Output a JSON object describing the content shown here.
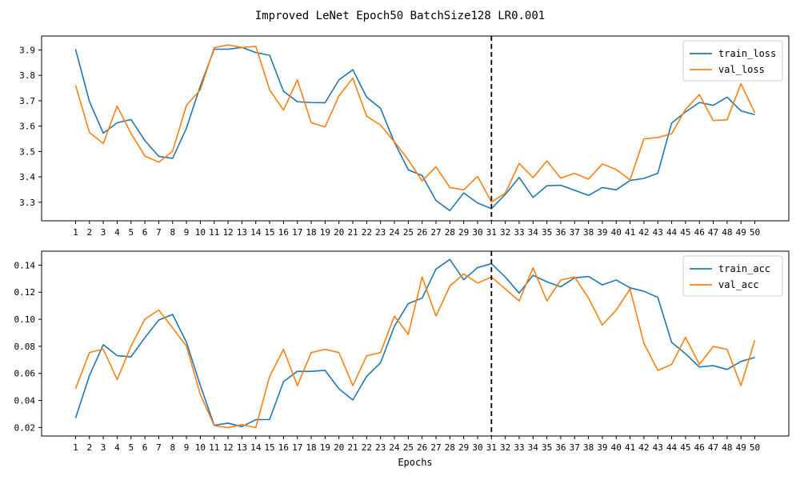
{
  "figure": {
    "title": "Improved LeNet Epoch50 BatchSize128 LR0.001",
    "xlabel": "Epochs"
  },
  "chart_data": [
    {
      "type": "line",
      "title": "",
      "xlabel": "",
      "ylabel": "",
      "x": [
        1,
        2,
        3,
        4,
        5,
        6,
        7,
        8,
        9,
        10,
        11,
        12,
        13,
        14,
        15,
        16,
        17,
        18,
        19,
        20,
        21,
        22,
        23,
        24,
        25,
        26,
        27,
        28,
        29,
        30,
        31,
        32,
        33,
        34,
        35,
        36,
        37,
        38,
        39,
        40,
        41,
        42,
        43,
        44,
        45,
        46,
        47,
        48,
        49,
        50
      ],
      "xlim": [
        -1.45,
        52.45
      ],
      "ylim": [
        3.227,
        3.955
      ],
      "yticks": [
        3.3,
        3.4,
        3.5,
        3.6,
        3.7,
        3.8,
        3.9
      ],
      "ytick_labels": [
        "3.3",
        "3.4",
        "3.5",
        "3.6",
        "3.7",
        "3.8",
        "3.9"
      ],
      "grid": false,
      "legend_position": "upper-right",
      "vline": {
        "x": 31,
        "style": "dashed",
        "color": "#000000"
      },
      "series": [
        {
          "name": "train_loss",
          "color": "#1f77b4",
          "values": [
            3.903,
            3.697,
            3.572,
            3.613,
            3.626,
            3.543,
            3.481,
            3.473,
            3.592,
            3.758,
            3.903,
            3.903,
            3.91,
            3.89,
            3.879,
            3.737,
            3.696,
            3.693,
            3.692,
            3.782,
            3.822,
            3.714,
            3.67,
            3.536,
            3.428,
            3.405,
            3.307,
            3.267,
            3.337,
            3.297,
            3.275,
            3.331,
            3.398,
            3.319,
            3.365,
            3.367,
            3.347,
            3.327,
            3.358,
            3.349,
            3.386,
            3.394,
            3.414,
            3.612,
            3.656,
            3.693,
            3.682,
            3.714,
            3.66,
            3.645
          ]
        },
        {
          "name": "val_loss",
          "color": "#ff7f0e",
          "values": [
            3.761,
            3.575,
            3.532,
            3.679,
            3.571,
            3.482,
            3.458,
            3.501,
            3.682,
            3.743,
            3.909,
            3.92,
            3.91,
            3.914,
            3.743,
            3.663,
            3.782,
            3.613,
            3.597,
            3.719,
            3.789,
            3.639,
            3.604,
            3.538,
            3.467,
            3.384,
            3.44,
            3.358,
            3.349,
            3.402,
            3.301,
            3.336,
            3.453,
            3.397,
            3.463,
            3.395,
            3.414,
            3.391,
            3.451,
            3.429,
            3.388,
            3.55,
            3.555,
            3.57,
            3.666,
            3.724,
            3.622,
            3.625,
            3.767,
            3.652
          ]
        }
      ]
    },
    {
      "type": "line",
      "title": "",
      "xlabel": "Epochs",
      "ylabel": "",
      "x": [
        1,
        2,
        3,
        4,
        5,
        6,
        7,
        8,
        9,
        10,
        11,
        12,
        13,
        14,
        15,
        16,
        17,
        18,
        19,
        20,
        21,
        22,
        23,
        24,
        25,
        26,
        27,
        28,
        29,
        30,
        31,
        32,
        33,
        34,
        35,
        36,
        37,
        38,
        39,
        40,
        41,
        42,
        43,
        44,
        45,
        46,
        47,
        48,
        49,
        50
      ],
      "xlim": [
        -1.45,
        52.45
      ],
      "ylim": [
        0.0137,
        0.1503
      ],
      "yticks": [
        0.02,
        0.04,
        0.06,
        0.08,
        0.1,
        0.12,
        0.14
      ],
      "ytick_labels": [
        "0.02",
        "0.04",
        "0.06",
        "0.08",
        "0.10",
        "0.12",
        "0.14"
      ],
      "grid": false,
      "legend_position": "upper-right",
      "vline": {
        "x": 31,
        "style": "dashed",
        "color": "#000000"
      },
      "series": [
        {
          "name": "train_acc",
          "color": "#1f77b4",
          "values": [
            0.0269,
            0.0583,
            0.0812,
            0.0731,
            0.0722,
            0.0864,
            0.0994,
            0.1036,
            0.0829,
            0.0511,
            0.0216,
            0.0232,
            0.0206,
            0.0258,
            0.0259,
            0.0539,
            0.0615,
            0.0615,
            0.0622,
            0.0486,
            0.0403,
            0.0578,
            0.0678,
            0.0948,
            0.1116,
            0.1156,
            0.1371,
            0.1442,
            0.1292,
            0.1382,
            0.1411,
            0.1312,
            0.1193,
            0.1325,
            0.1277,
            0.124,
            0.1306,
            0.1316,
            0.1254,
            0.129,
            0.1232,
            0.1207,
            0.1162,
            0.0829,
            0.0745,
            0.0647,
            0.0657,
            0.0629,
            0.0688,
            0.0718
          ]
        },
        {
          "name": "val_acc",
          "color": "#ff7f0e",
          "values": [
            0.0487,
            0.0754,
            0.0779,
            0.0554,
            0.0801,
            0.1001,
            0.1068,
            0.0936,
            0.0801,
            0.0444,
            0.0214,
            0.0199,
            0.0221,
            0.0199,
            0.0577,
            0.0777,
            0.0509,
            0.0754,
            0.0777,
            0.0754,
            0.0509,
            0.073,
            0.0754,
            0.1023,
            0.0888,
            0.1312,
            0.1023,
            0.1245,
            0.1335,
            0.1268,
            0.1312,
            0.1224,
            0.1135,
            0.1381,
            0.1135,
            0.129,
            0.1312,
            0.1157,
            0.0957,
            0.1068,
            0.1224,
            0.0822,
            0.0622,
            0.0666,
            0.0866,
            0.0666,
            0.0799,
            0.0777,
            0.051,
            0.0845
          ]
        }
      ]
    }
  ]
}
